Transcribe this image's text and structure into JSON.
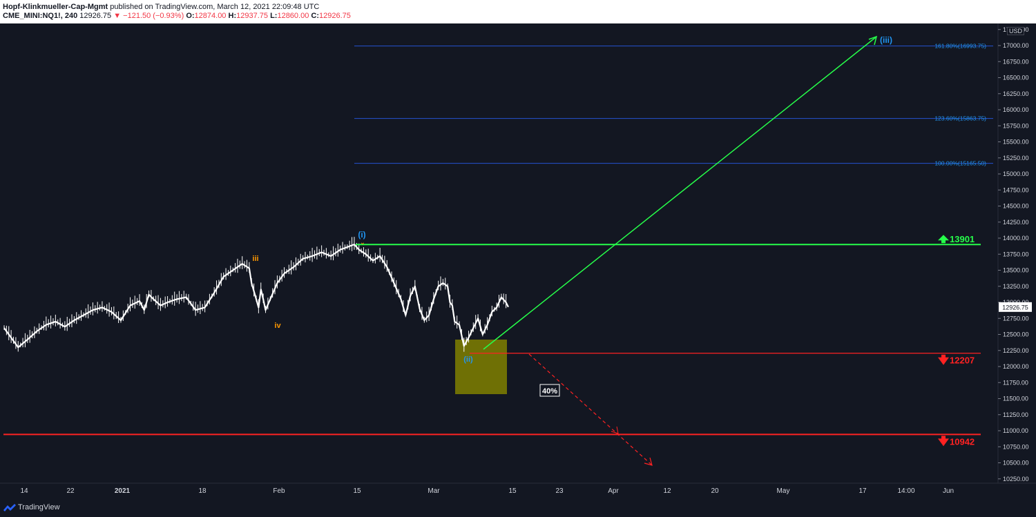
{
  "header": {
    "author": "Hopf-Klinkmueller-Cap-Mgmt",
    "published": "published on TradingView.com, March 12, 2021 22:09:48 UTC",
    "symbol": "CME_MINI:NQ1!, 240",
    "last": "12926.75",
    "change": "−121.50 (−0.93%)",
    "o_label": "O:",
    "o": "12874.00",
    "h_label": "H:",
    "h": "12937.75",
    "l_label": "L:",
    "l": "12860.00",
    "c_label": "C:",
    "c": "12926.75"
  },
  "footer": {
    "brand": "TradingView"
  },
  "colors": {
    "background": "#131722",
    "up": "#26ff4a",
    "down": "#ff2222",
    "fib": "#2962ff",
    "wave_blue": "#2196f3",
    "wave_orange": "#ff9800",
    "box": "#808000"
  },
  "chart_data": {
    "type": "candlestick",
    "currency": "USD",
    "y_range": [
      10180,
      17350
    ],
    "y_ticks": [
      "17250.00",
      "17000.00",
      "16750.00",
      "16500.00",
      "16250.00",
      "16000.00",
      "15750.00",
      "15500.00",
      "15250.00",
      "15000.00",
      "14750.00",
      "14500.00",
      "14250.00",
      "14000.00",
      "13750.00",
      "13500.00",
      "13250.00",
      "13000.00",
      "12750.00",
      "12500.00",
      "12250.00",
      "12000.00",
      "11750.00",
      "11500.00",
      "11250.00",
      "11000.00",
      "10750.00",
      "10500.00",
      "10250.00"
    ],
    "x_labels": [
      "14",
      "22",
      "2021",
      "18",
      "Feb",
      "15",
      "Mar",
      "15",
      "23",
      "Apr",
      "12",
      "20",
      "May",
      "17",
      "14:00",
      "Jun"
    ],
    "last_price": "12926.75",
    "price_path": [
      [
        0,
        12600
      ],
      [
        3,
        12450
      ],
      [
        6,
        12300
      ],
      [
        10,
        12420
      ],
      [
        14,
        12550
      ],
      [
        18,
        12650
      ],
      [
        22,
        12700
      ],
      [
        26,
        12620
      ],
      [
        30,
        12720
      ],
      [
        34,
        12800
      ],
      [
        38,
        12880
      ],
      [
        42,
        12920
      ],
      [
        46,
        12850
      ],
      [
        50,
        12720
      ],
      [
        54,
        12950
      ],
      [
        58,
        13020
      ],
      [
        60,
        12880
      ],
      [
        62,
        13120
      ],
      [
        64,
        13050
      ],
      [
        67,
        12950
      ],
      [
        70,
        13000
      ],
      [
        74,
        13050
      ],
      [
        78,
        13080
      ],
      [
        82,
        12880
      ],
      [
        86,
        12920
      ],
      [
        90,
        13150
      ],
      [
        94,
        13400
      ],
      [
        98,
        13500
      ],
      [
        102,
        13600
      ],
      [
        105,
        13530
      ],
      [
        106,
        13300
      ],
      [
        108,
        13050
      ],
      [
        109,
        12920
      ],
      [
        110,
        13200
      ],
      [
        111,
        13050
      ],
      [
        112,
        12880
      ],
      [
        114,
        13050
      ],
      [
        117,
        13300
      ],
      [
        120,
        13450
      ],
      [
        124,
        13550
      ],
      [
        128,
        13680
      ],
      [
        132,
        13720
      ],
      [
        136,
        13780
      ],
      [
        140,
        13720
      ],
      [
        144,
        13820
      ],
      [
        147,
        13860
      ],
      [
        150,
        13902
      ],
      [
        152,
        13820
      ],
      [
        155,
        13750
      ],
      [
        158,
        13650
      ],
      [
        161,
        13720
      ],
      [
        164,
        13550
      ],
      [
        167,
        13300
      ],
      [
        170,
        13050
      ],
      [
        172,
        12800
      ],
      [
        174,
        13100
      ],
      [
        176,
        13250
      ],
      [
        178,
        12900
      ],
      [
        180,
        12720
      ],
      [
        182,
        12800
      ],
      [
        184,
        13050
      ],
      [
        186,
        13250
      ],
      [
        188,
        13300
      ],
      [
        190,
        13250
      ],
      [
        191,
        13000
      ],
      [
        192,
        12950
      ],
      [
        193,
        12700
      ],
      [
        195,
        12650
      ],
      [
        197,
        12320
      ],
      [
        199,
        12450
      ],
      [
        201,
        12600
      ],
      [
        203,
        12750
      ],
      [
        205,
        12500
      ],
      [
        207,
        12650
      ],
      [
        209,
        12850
      ],
      [
        211,
        12920
      ],
      [
        213,
        13080
      ],
      [
        215,
        13000
      ],
      [
        216,
        12926.75
      ]
    ],
    "price_path_x_note": "",
    "horizontal_levels": [
      {
        "price": 13901,
        "label": "13901",
        "color": "#26ff4a",
        "direction": "up"
      },
      {
        "price": 12207,
        "label": "12207",
        "color": "#ff2222",
        "direction": "down"
      },
      {
        "price": 10942,
        "label": "10942",
        "color": "#ff2222",
        "direction": "down"
      }
    ],
    "fib_levels": [
      {
        "label": "161.80%(16993.75)",
        "price": 16993.75
      },
      {
        "label": "123.60%(15863.75)",
        "price": 15863.75
      },
      {
        "label": "100.00%(15165.50)",
        "price": 15165.5
      }
    ],
    "wave_labels": [
      {
        "text": "(i)",
        "color": "#2196f3"
      },
      {
        "text": "(ii)",
        "color": "#2196f3"
      },
      {
        "text": "(iii)",
        "color": "#2196f3"
      },
      {
        "text": "iii",
        "color": "#ff9800"
      },
      {
        "text": "iv",
        "color": "#ff9800"
      }
    ],
    "probability_label": "40%"
  }
}
